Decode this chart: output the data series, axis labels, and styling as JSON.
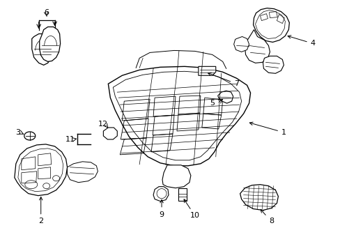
{
  "background_color": "#ffffff",
  "line_color": "#000000",
  "label_fontsize": 8,
  "fig_width": 4.89,
  "fig_height": 3.6,
  "dpi": 100
}
